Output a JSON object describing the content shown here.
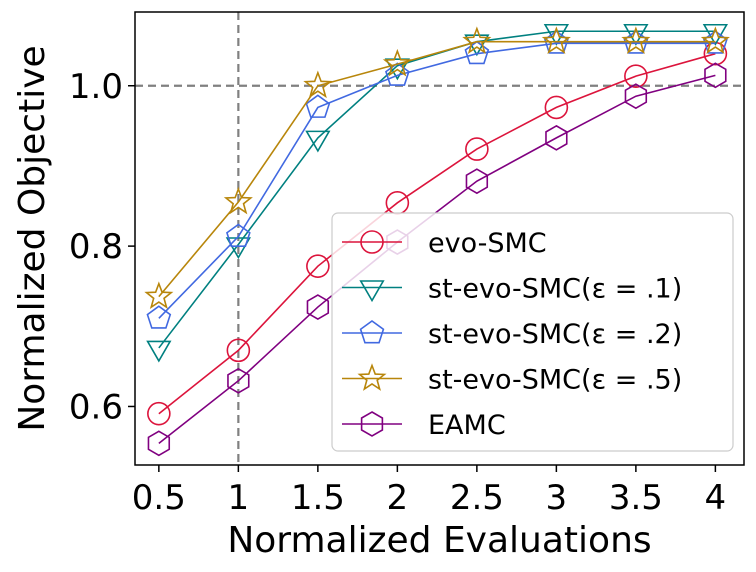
{
  "chart_data": {
    "type": "line",
    "title": "",
    "xlabel": "Normalized Evaluations",
    "ylabel": "Normalized Objective",
    "x": [
      0.5,
      1,
      1.5,
      2,
      2.5,
      3,
      3.5,
      4
    ],
    "xticks": [
      "0.5",
      "1",
      "1.5",
      "2",
      "2.5",
      "3",
      "3.5",
      "4"
    ],
    "yticks": [
      "0.6",
      "0.8",
      "1.0"
    ],
    "ytick_values": [
      0.6,
      0.8,
      1.0
    ],
    "xlim": [
      0.35,
      4.18
    ],
    "ylim": [
      0.527,
      1.092
    ],
    "reference_lines": {
      "x": 1.0,
      "y": 1.0,
      "style": "dashed",
      "color": "#808080"
    },
    "legend_position": "lower-right",
    "series": [
      {
        "name": "evo-SMC",
        "color": "#DC143C",
        "marker": "circle",
        "values": [
          0.591,
          0.67,
          0.775,
          0.854,
          0.921,
          0.973,
          1.012,
          1.04
        ]
      },
      {
        "name": "st-evo-SMC(ε = .1)",
        "color": "#008080",
        "marker": "triangle-down",
        "values": [
          0.673,
          0.802,
          0.935,
          1.025,
          1.055,
          1.068,
          1.068,
          1.068
        ]
      },
      {
        "name": "st-evo-SMC(ε = .2)",
        "color": "#4169E1",
        "marker": "pentagon",
        "values": [
          0.71,
          0.812,
          0.973,
          1.013,
          1.04,
          1.053,
          1.053,
          1.053
        ]
      },
      {
        "name": "st-evo-SMC(ε = .5)",
        "color": "#B8860B",
        "marker": "star",
        "values": [
          0.737,
          0.855,
          1.0,
          1.027,
          1.055,
          1.055,
          1.055,
          1.055
        ]
      },
      {
        "name": "EAMC",
        "color": "#800080",
        "marker": "hexagon",
        "values": [
          0.554,
          0.632,
          0.724,
          0.805,
          0.881,
          0.935,
          0.987,
          1.013
        ]
      }
    ]
  }
}
